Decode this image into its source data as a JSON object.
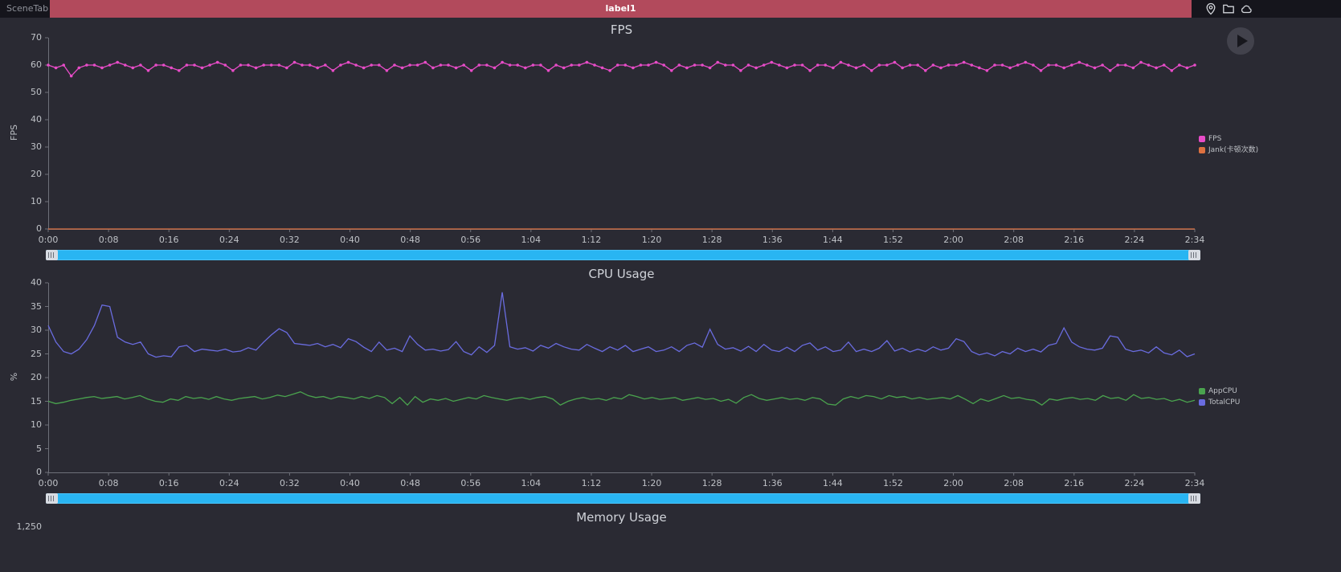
{
  "topbar": {
    "app_label": "SceneTab",
    "tab_label": "label1",
    "icons": [
      "location-pin-icon",
      "folder-icon",
      "cloud-icon"
    ]
  },
  "colors": {
    "background": "#2a2a33",
    "topbar_bg": "#15151c",
    "tab_red": "#b24a5c",
    "slider_blue": "#29b5f2",
    "fps_pink": "#e84cc8",
    "jank_orange": "#dd7140",
    "appcpu_green": "#4aa34e",
    "totalcpu_purple": "#6a6ce0"
  },
  "chart_data": [
    {
      "type": "line",
      "title": "FPS",
      "ylabel": "FPS",
      "ylim": [
        0,
        70
      ],
      "yticks": [
        0,
        10,
        20,
        30,
        40,
        50,
        60,
        70
      ],
      "xticks": [
        "0:00",
        "0:08",
        "0:16",
        "0:24",
        "0:32",
        "0:40",
        "0:48",
        "0:56",
        "1:04",
        "1:12",
        "1:20",
        "1:28",
        "1:36",
        "1:44",
        "1:52",
        "2:00",
        "2:08",
        "2:16",
        "2:24",
        "2:34"
      ],
      "legend": [
        {
          "label": "FPS",
          "color": "#e84cc8"
        },
        {
          "label": "Jank(卡顿次数)",
          "color": "#dd7140"
        }
      ],
      "series": [
        {
          "name": "FPS",
          "color": "#e84cc8",
          "symbols": true,
          "values": [
            60,
            59,
            60,
            56,
            59,
            60,
            60,
            59,
            60,
            61,
            60,
            59,
            60,
            58,
            60,
            60,
            59,
            58,
            60,
            60,
            59,
            60,
            61,
            60,
            58,
            60,
            60,
            59,
            60,
            60,
            60,
            59,
            61,
            60,
            60,
            59,
            60,
            58,
            60,
            61,
            60,
            59,
            60,
            60,
            58,
            60,
            59,
            60,
            60,
            61,
            59,
            60,
            60,
            59,
            60,
            58,
            60,
            60,
            59,
            61,
            60,
            60,
            59,
            60,
            60,
            58,
            60,
            59,
            60,
            60,
            61,
            60,
            59,
            58,
            60,
            60,
            59,
            60,
            60,
            61,
            60,
            58,
            60,
            59,
            60,
            60,
            59,
            61,
            60,
            60,
            58,
            60,
            59,
            60,
            61,
            60,
            59,
            60,
            60,
            58,
            60,
            60,
            59,
            61,
            60,
            59,
            60,
            58,
            60,
            60,
            61,
            59,
            60,
            60,
            58,
            60,
            59,
            60,
            60,
            61,
            60,
            59,
            58,
            60,
            60,
            59,
            60,
            61,
            60,
            58,
            60,
            60,
            59,
            60,
            61,
            60,
            59,
            60,
            58,
            60,
            60,
            59,
            61,
            60,
            59,
            60,
            58,
            60,
            59,
            60
          ]
        },
        {
          "name": "Jank(卡顿次数)",
          "color": "#dd7140",
          "symbols": false,
          "constant": 0,
          "count": 150
        }
      ]
    },
    {
      "type": "line",
      "title": "CPU Usage",
      "ylabel": "%",
      "ylim": [
        0,
        40
      ],
      "yticks": [
        0,
        5,
        10,
        15,
        20,
        25,
        30,
        35,
        40
      ],
      "xticks": [
        "0:00",
        "0:08",
        "0:16",
        "0:24",
        "0:32",
        "0:40",
        "0:48",
        "0:56",
        "1:04",
        "1:12",
        "1:20",
        "1:28",
        "1:36",
        "1:44",
        "1:52",
        "2:00",
        "2:08",
        "2:16",
        "2:24",
        "2:34"
      ],
      "legend": [
        {
          "label": "AppCPU",
          "color": "#4aa34e"
        },
        {
          "label": "TotalCPU",
          "color": "#6a6ce0"
        }
      ],
      "series": [
        {
          "name": "AppCPU",
          "color": "#4aa34e",
          "symbols": false,
          "values": [
            15,
            14.5,
            14.8,
            15.2,
            15.5,
            15.8,
            16,
            15.6,
            15.8,
            16,
            15.5,
            15.8,
            16.2,
            15.5,
            15,
            14.8,
            15.5,
            15.2,
            16,
            15.6,
            15.8,
            15.4,
            16,
            15.5,
            15.2,
            15.6,
            15.8,
            16,
            15.5,
            15.8,
            16.3,
            16,
            16.5,
            17,
            16.2,
            15.8,
            16,
            15.5,
            16,
            15.8,
            15.5,
            16,
            15.6,
            16.2,
            15.8,
            14.5,
            15.8,
            14.2,
            16,
            14.8,
            15.5,
            15.2,
            15.6,
            15,
            15.4,
            15.8,
            15.5,
            16.2,
            15.8,
            15.5,
            15.2,
            15.6,
            15.8,
            15.4,
            15.8,
            16,
            15.5,
            14.2,
            15,
            15.5,
            15.8,
            15.4,
            15.6,
            15.2,
            15.8,
            15.5,
            16.4,
            16,
            15.5,
            15.8,
            15.4,
            15.6,
            15.8,
            15.2,
            15.5,
            15.8,
            15.4,
            15.6,
            15,
            15.4,
            14.6,
            15.8,
            16.4,
            15.6,
            15.2,
            15.5,
            15.8,
            15.4,
            15.6,
            15.2,
            15.8,
            15.5,
            14.4,
            14.2,
            15.5,
            16,
            15.6,
            16.2,
            16,
            15.5,
            16.2,
            15.8,
            16,
            15.5,
            15.8,
            15.4,
            15.6,
            15.8,
            15.5,
            16.2,
            15.4,
            14.5,
            15.5,
            15,
            15.6,
            16.2,
            15.6,
            15.8,
            15.4,
            15.2,
            14.2,
            15.5,
            15.2,
            15.6,
            15.8,
            15.4,
            15.6,
            15.2,
            16.2,
            15.6,
            15.8,
            15.2,
            16.4,
            15.6,
            15.8,
            15.4,
            15.6,
            15,
            15.4,
            14.8,
            15.2
          ]
        },
        {
          "name": "TotalCPU",
          "color": "#6a6ce0",
          "symbols": false,
          "values": [
            31,
            27.5,
            25.5,
            25,
            26,
            28,
            31,
            35.3,
            35,
            28.5,
            27.5,
            27,
            27.5,
            25,
            24.3,
            24.6,
            24.4,
            26.5,
            26.8,
            25.5,
            26,
            25.8,
            25.6,
            26,
            25.4,
            25.6,
            26.3,
            25.8,
            27.5,
            29,
            30.3,
            29.5,
            27.2,
            27,
            26.8,
            27.2,
            26.5,
            27,
            26.3,
            28.2,
            27.6,
            26.4,
            25.5,
            27.5,
            25.8,
            26.2,
            25.5,
            28.8,
            27,
            25.8,
            26,
            25.6,
            25.9,
            27.6,
            25.5,
            24.8,
            26.5,
            25.3,
            26.8,
            38,
            26.5,
            26,
            26.3,
            25.6,
            26.8,
            26.2,
            27.2,
            26.5,
            26,
            25.8,
            27,
            26.2,
            25.5,
            26.5,
            25.8,
            26.8,
            25.5,
            26,
            26.5,
            25.5,
            25.8,
            26.5,
            25.5,
            26.8,
            27.3,
            26.4,
            30.2,
            27,
            26,
            26.3,
            25.6,
            26.6,
            25.5,
            27,
            25.8,
            25.5,
            26.4,
            25.5,
            26.8,
            27.3,
            25.8,
            26.5,
            25.5,
            25.8,
            27.5,
            25.5,
            26,
            25.5,
            26.2,
            27.8,
            25.6,
            26.2,
            25.4,
            26,
            25.5,
            26.5,
            25.8,
            26.2,
            28.2,
            27.6,
            25.5,
            24.8,
            25.2,
            24.6,
            25.5,
            25,
            26.2,
            25.5,
            26,
            25.4,
            26.8,
            27.2,
            30.5,
            27.5,
            26.5,
            26,
            25.8,
            26.2,
            28.8,
            28.5,
            26,
            25.5,
            25.8,
            25.2,
            26.5,
            25.2,
            24.8,
            25.8,
            24.4,
            25
          ]
        }
      ]
    },
    {
      "type": "line",
      "title": "Memory Usage",
      "yticks": [
        "1,250"
      ],
      "series": []
    }
  ]
}
